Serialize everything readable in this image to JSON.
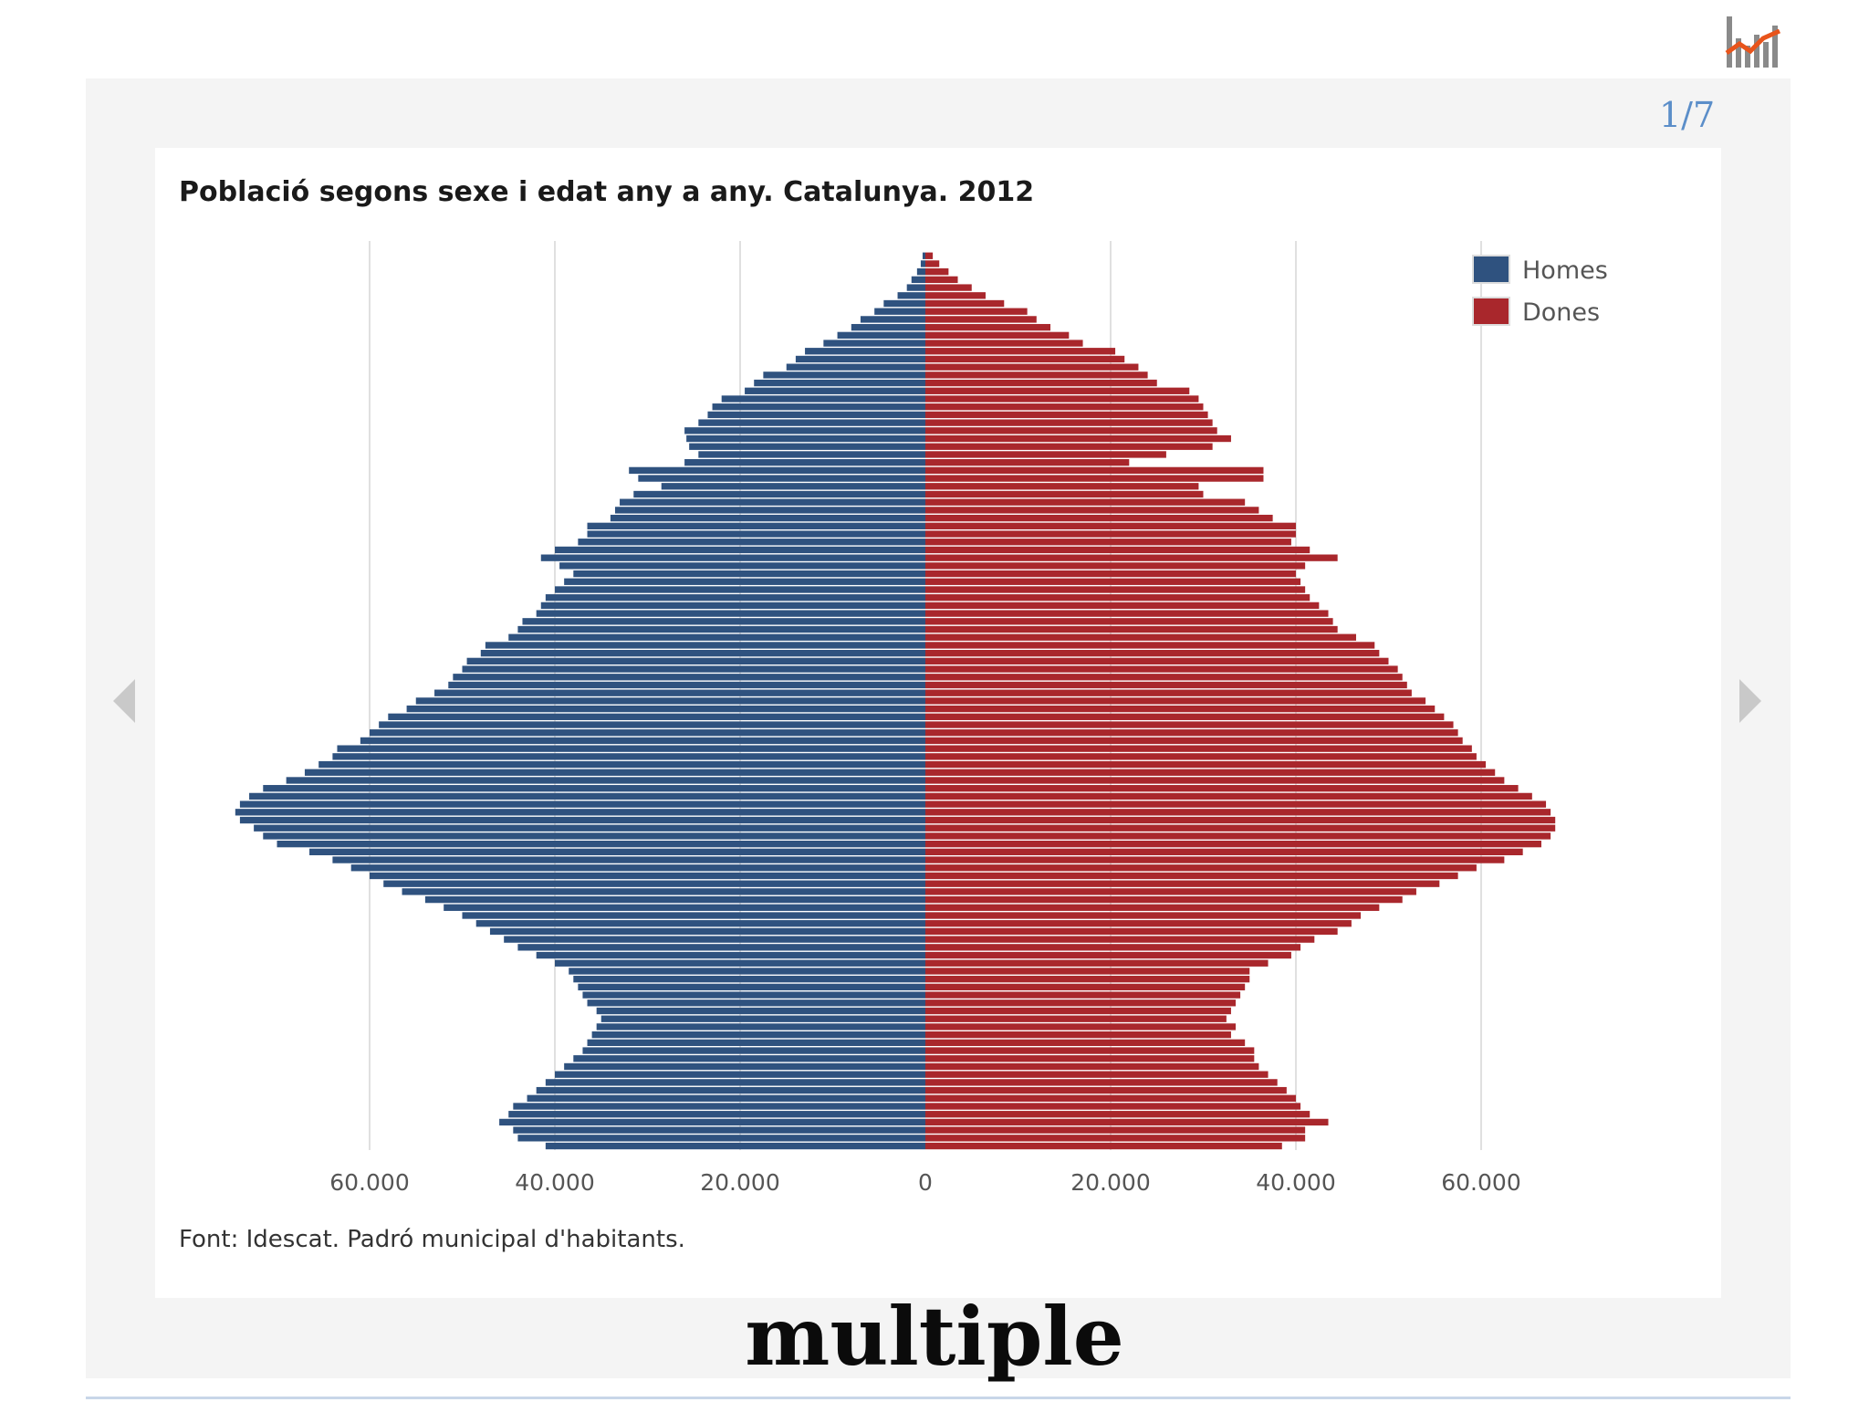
{
  "pager": "1/7",
  "caption": "multiple",
  "colors": {
    "men": "#2f527f",
    "women": "#a9272c",
    "accent": "#5b8ec9",
    "logo_line": "#e8541b"
  },
  "icons": {
    "logo": "bar-line-chart-icon",
    "prev": "chevron-left-icon",
    "next": "chevron-right-icon"
  },
  "chart_data": {
    "type": "bar",
    "orientation": "horizontal",
    "subtype": "population-pyramid",
    "title": "Població segons sexe i edat any a any. Catalunya. 2012",
    "source": "Font: Idescat. Padró municipal d'habitants.",
    "xlim": [
      -75000,
      75000
    ],
    "xticks": [
      -60000,
      -40000,
      -20000,
      0,
      20000,
      40000,
      60000
    ],
    "xtick_labels": [
      "60.000",
      "40.000",
      "20.000",
      "0",
      "20.000",
      "40.000",
      "60.000"
    ],
    "grid": true,
    "legend_position": "top-right",
    "age_order": "top-is-oldest",
    "series": [
      {
        "name": "Homes",
        "color": "#2f527f",
        "side": "left",
        "values": [
          41000,
          44000,
          44500,
          46000,
          45000,
          44500,
          43000,
          42000,
          41000,
          40000,
          39000,
          38000,
          37000,
          36500,
          36000,
          35500,
          35000,
          35500,
          36500,
          37000,
          37500,
          38000,
          38500,
          40000,
          42000,
          44000,
          45500,
          47000,
          48500,
          50000,
          52000,
          54000,
          56500,
          58500,
          60000,
          62000,
          64000,
          66500,
          70000,
          71500,
          72500,
          74000,
          74500,
          74000,
          73000,
          71500,
          69000,
          67000,
          65500,
          64000,
          63500,
          61000,
          60000,
          59000,
          58000,
          56000,
          55000,
          53000,
          51500,
          51000,
          50000,
          49500,
          48000,
          47500,
          45000,
          44000,
          43500,
          42000,
          41500,
          41000,
          40000,
          39000,
          38000,
          39500,
          41500,
          40000,
          37500,
          36500,
          36500,
          34000,
          33500,
          33000,
          31500,
          28500,
          31000,
          32000,
          26000,
          24500,
          25500,
          25800,
          26000,
          24500,
          23500,
          23000,
          22000,
          19500,
          18500,
          17500,
          15000,
          14000,
          13000,
          11000,
          9500,
          8000,
          7000,
          5500,
          4500,
          3000,
          2000,
          1500,
          900,
          500,
          300
        ]
      },
      {
        "name": "Dones",
        "color": "#a9272c",
        "side": "right",
        "values": [
          38500,
          41000,
          41000,
          43500,
          41500,
          40500,
          40000,
          39000,
          38000,
          37000,
          36000,
          35500,
          35500,
          34500,
          33000,
          33500,
          32500,
          33000,
          33500,
          34000,
          34500,
          35000,
          35000,
          37000,
          39500,
          40500,
          42000,
          44500,
          46000,
          47000,
          49000,
          51500,
          53000,
          55500,
          57500,
          59500,
          62500,
          64500,
          66500,
          67500,
          68000,
          68000,
          67500,
          67000,
          65500,
          64000,
          62500,
          61500,
          60500,
          59500,
          59000,
          58000,
          57500,
          57000,
          56000,
          55000,
          54000,
          52500,
          52000,
          51500,
          51000,
          50000,
          49000,
          48500,
          46500,
          44500,
          44000,
          43500,
          42500,
          41500,
          41000,
          40500,
          40000,
          41000,
          44500,
          41500,
          39500,
          40000,
          40000,
          37500,
          36000,
          34500,
          30000,
          29500,
          36500,
          36500,
          22000,
          26000,
          31000,
          33000,
          31500,
          31000,
          30500,
          30000,
          29500,
          28500,
          25000,
          24000,
          23000,
          21500,
          20500,
          17000,
          15500,
          13500,
          12000,
          11000,
          8500,
          6500,
          5000,
          3500,
          2500,
          1500,
          800
        ]
      }
    ]
  }
}
